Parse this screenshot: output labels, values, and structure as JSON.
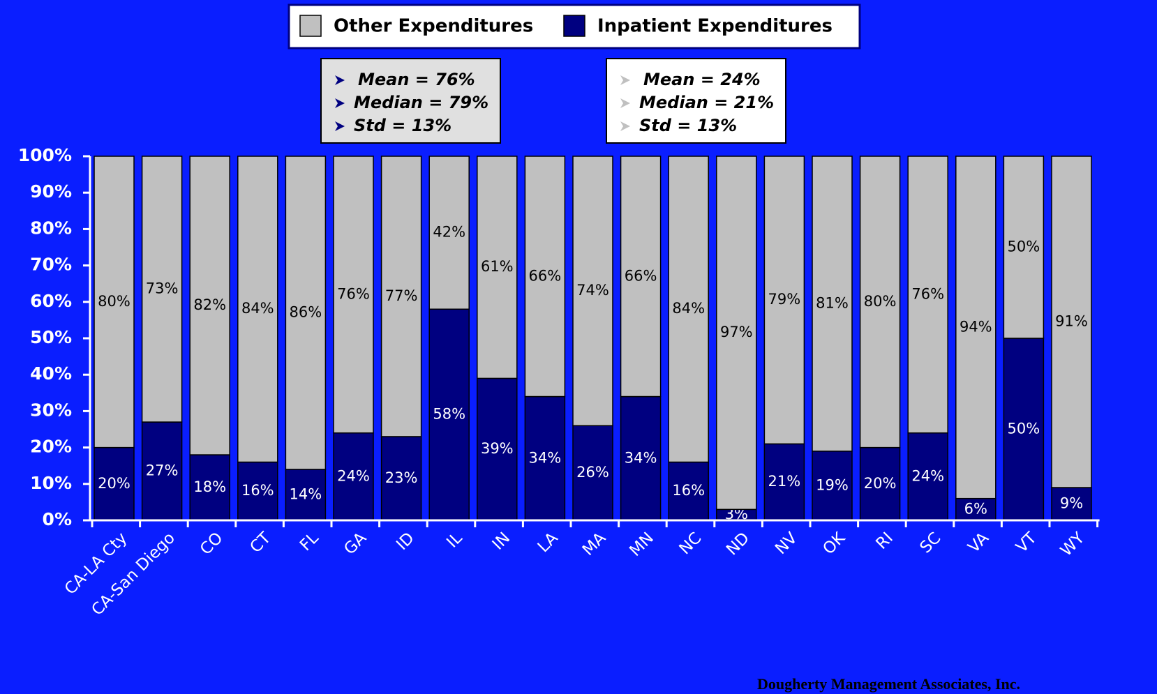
{
  "chart_data": {
    "type": "stacked_bar",
    "categories": [
      "CA-LA Cty",
      "CA-San Diego",
      "CO",
      "CT",
      "FL",
      "GA",
      "ID",
      "IL",
      "IN",
      "LA",
      "MA",
      "MN",
      "NC",
      "ND",
      "NV",
      "OK",
      "RI",
      "SC",
      "VA",
      "VT",
      "WY"
    ],
    "series": [
      {
        "name": "Other Expenditures",
        "color": "#c0c0c0",
        "values": [
          80,
          73,
          82,
          84,
          86,
          76,
          77,
          42,
          61,
          66,
          74,
          66,
          84,
          97,
          79,
          81,
          80,
          76,
          94,
          50,
          91
        ],
        "value_labels": [
          "80%",
          "73%",
          "82%",
          "84%",
          "86%",
          "76%",
          "77%",
          "42%",
          "61%",
          "66%",
          "74%",
          "66%",
          "84%",
          "97%",
          "79%",
          "81%",
          "80%",
          "76%",
          "94%",
          "50%",
          "91%"
        ]
      },
      {
        "name": "Inpatient Expenditures",
        "color": "#000080",
        "values": [
          20,
          27,
          18,
          16,
          14,
          24,
          23,
          58,
          39,
          34,
          26,
          34,
          16,
          3,
          21,
          19,
          20,
          24,
          6,
          50,
          9
        ],
        "value_labels": [
          "20%",
          "27%",
          "18%",
          "16%",
          "14%",
          "24%",
          "23%",
          "58%",
          "39%",
          "34%",
          "26%",
          "34%",
          "16%",
          "3%",
          "21%",
          "19%",
          "20%",
          "24%",
          "6%",
          "50%",
          "9%"
        ]
      }
    ],
    "ylim": [
      0,
      100
    ],
    "yticks": [
      {
        "value": 0,
        "label": "0%"
      },
      {
        "value": 10,
        "label": "10%"
      },
      {
        "value": 20,
        "label": "20%"
      },
      {
        "value": 30,
        "label": "30%"
      },
      {
        "value": 40,
        "label": "40%"
      },
      {
        "value": 50,
        "label": "50%"
      },
      {
        "value": 60,
        "label": "60%"
      },
      {
        "value": 70,
        "label": "70%"
      },
      {
        "value": 80,
        "label": "80%"
      },
      {
        "value": 90,
        "label": "90%"
      },
      {
        "value": 100,
        "label": "100%"
      }
    ],
    "legend": "top",
    "annotations": [
      [
        "Mean = 76%",
        "Median = 79%",
        "Std = 13%"
      ],
      [
        "Mean = 24%",
        "Median = 21%",
        "Std = 13%"
      ]
    ],
    "footer": "Dougherty Management Associates, Inc."
  }
}
